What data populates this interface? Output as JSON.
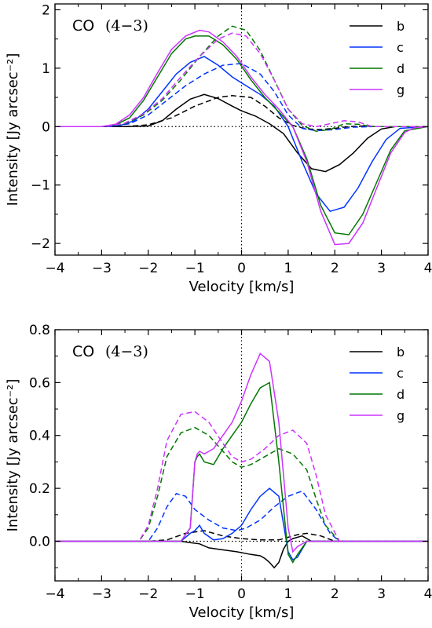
{
  "chart_data": [
    {
      "type": "line",
      "annotation": "CO",
      "annotation_transition": "(4−3)",
      "xlabel": "Velocity [km/s]",
      "ylabel": "Intensity [Jy arcsec⁻²]",
      "xlim": [
        -4,
        4
      ],
      "ylim": [
        -2.2,
        2.1
      ],
      "xticks": [
        "−4",
        "−3",
        "−2",
        "−1",
        "0",
        "1",
        "2",
        "3",
        "4"
      ],
      "yticks": [
        "−2",
        "−1",
        "0",
        "1",
        "2"
      ],
      "ytick_values": [
        -2,
        -1,
        0,
        1,
        2
      ],
      "legend": {
        "placement": "top-right",
        "entries": [
          "b",
          "c",
          "d",
          "g"
        ]
      },
      "grid": false,
      "reference_lines": [
        "x = 0 (dotted)",
        "y = 0 (dotted)"
      ],
      "series": [
        {
          "name": "b",
          "style": "solid",
          "color": "#000000",
          "x": [
            -4,
            -3,
            -2.5,
            -2,
            -1.7,
            -1.4,
            -1.1,
            -0.8,
            -0.5,
            -0.2,
            0,
            0.3,
            0.6,
            0.9,
            1.2,
            1.5,
            1.8,
            2.1,
            2.4,
            2.7,
            3,
            3.3,
            4
          ],
          "y": [
            0,
            0,
            0,
            0.01,
            0.1,
            0.3,
            0.47,
            0.55,
            0.48,
            0.35,
            0.27,
            0.18,
            0.05,
            -0.12,
            -0.45,
            -0.72,
            -0.77,
            -0.65,
            -0.45,
            -0.2,
            -0.04,
            0,
            0
          ]
        },
        {
          "name": "b",
          "style": "dashed",
          "color": "#000000",
          "x": [
            -4,
            -2.5,
            -2,
            -1.5,
            -1,
            -0.5,
            -0.2,
            0.2,
            0.5,
            0.8,
            1.1,
            1.4,
            1.7,
            2,
            2.3,
            2.6,
            3,
            4
          ],
          "y": [
            0,
            0,
            0.03,
            0.15,
            0.35,
            0.5,
            0.53,
            0.5,
            0.35,
            0.15,
            0.02,
            -0.04,
            -0.05,
            -0.03,
            0,
            0.01,
            0,
            0
          ]
        },
        {
          "name": "c",
          "style": "solid",
          "color": "#0033ff",
          "x": [
            -4,
            -3,
            -2.6,
            -2.3,
            -2,
            -1.7,
            -1.4,
            -1.1,
            -0.8,
            -0.5,
            -0.2,
            0.1,
            0.4,
            0.7,
            1,
            1.3,
            1.6,
            1.9,
            2.2,
            2.5,
            2.8,
            3.1,
            3.4,
            4
          ],
          "y": [
            0,
            0,
            0.02,
            0.1,
            0.3,
            0.6,
            0.9,
            1.1,
            1.2,
            1.05,
            0.85,
            0.7,
            0.55,
            0.35,
            0,
            -0.6,
            -1.15,
            -1.45,
            -1.38,
            -1.05,
            -0.6,
            -0.22,
            -0.03,
            0
          ]
        },
        {
          "name": "c",
          "style": "dashed",
          "color": "#0033ff",
          "x": [
            -4,
            -2.8,
            -2.4,
            -2,
            -1.6,
            -1.2,
            -0.8,
            -0.4,
            0,
            0.4,
            0.7,
            1,
            1.3,
            1.6,
            2,
            2.4,
            2.8,
            4
          ],
          "y": [
            0,
            0,
            0.05,
            0.2,
            0.45,
            0.7,
            0.9,
            1.05,
            1.08,
            0.9,
            0.6,
            0.2,
            -0.03,
            -0.07,
            -0.05,
            -0.01,
            0,
            0
          ]
        },
        {
          "name": "d",
          "style": "solid",
          "color": "#007700",
          "x": [
            -4,
            -3,
            -2.7,
            -2.4,
            -2.1,
            -1.8,
            -1.5,
            -1.2,
            -1,
            -0.7,
            -0.4,
            -0.1,
            0.2,
            0.5,
            0.8,
            1.1,
            1.4,
            1.7,
            2,
            2.3,
            2.6,
            2.9,
            3.2,
            3.5,
            4
          ],
          "y": [
            0,
            0,
            0.03,
            0.15,
            0.45,
            0.85,
            1.25,
            1.5,
            1.55,
            1.55,
            1.4,
            1.15,
            0.8,
            0.5,
            0.25,
            0,
            -0.55,
            -1.35,
            -1.82,
            -1.85,
            -1.5,
            -0.95,
            -0.4,
            -0.07,
            0
          ]
        },
        {
          "name": "d",
          "style": "dashed",
          "color": "#007700",
          "x": [
            -4,
            -2.9,
            -2.5,
            -2.1,
            -1.7,
            -1.3,
            -0.9,
            -0.5,
            -0.2,
            0.1,
            0.4,
            0.7,
            1,
            1.3,
            1.6,
            1.9,
            2.2,
            2.5,
            2.8,
            4
          ],
          "y": [
            0,
            0,
            0.05,
            0.2,
            0.45,
            0.8,
            1.2,
            1.55,
            1.72,
            1.65,
            1.3,
            0.8,
            0.3,
            0.02,
            -0.08,
            -0.05,
            0.05,
            0.04,
            0,
            0
          ]
        },
        {
          "name": "g",
          "style": "solid",
          "color": "#cc33ff",
          "x": [
            -4,
            -3,
            -2.7,
            -2.4,
            -2.1,
            -1.8,
            -1.5,
            -1.2,
            -0.9,
            -0.7,
            -0.4,
            -0.1,
            0.2,
            0.5,
            0.8,
            1.1,
            1.4,
            1.7,
            2,
            2.3,
            2.6,
            2.9,
            3.2,
            3.5,
            3.7,
            4
          ],
          "y": [
            0,
            0,
            0.04,
            0.2,
            0.5,
            0.92,
            1.32,
            1.55,
            1.65,
            1.62,
            1.45,
            1.2,
            0.85,
            0.55,
            0.3,
            0,
            -0.6,
            -1.45,
            -2.02,
            -2.0,
            -1.65,
            -1.05,
            -0.45,
            -0.1,
            -0.02,
            0
          ]
        },
        {
          "name": "g",
          "style": "dashed",
          "color": "#cc33ff",
          "x": [
            -4,
            -2.9,
            -2.5,
            -2.1,
            -1.7,
            -1.3,
            -0.9,
            -0.5,
            -0.2,
            0.1,
            0.4,
            0.7,
            1,
            1.3,
            1.6,
            1.9,
            2.2,
            2.5,
            2.8,
            4
          ],
          "y": [
            0,
            0,
            0.06,
            0.22,
            0.48,
            0.85,
            1.2,
            1.5,
            1.6,
            1.55,
            1.25,
            0.8,
            0.3,
            0.05,
            0.0,
            0.05,
            0.1,
            0.08,
            0,
            0
          ]
        }
      ]
    },
    {
      "type": "line",
      "annotation": "CO",
      "annotation_transition": "(4−3)",
      "xlabel": "Velocity [km/s]",
      "ylabel": "Intensity [Jy arcsec⁻²]",
      "xlim": [
        -4,
        4
      ],
      "ylim": [
        -0.15,
        0.8
      ],
      "xticks": [
        "−4",
        "−3",
        "−2",
        "−1",
        "0",
        "1",
        "2",
        "3",
        "4"
      ],
      "yticks": [
        "0.0",
        "0.2",
        "0.4",
        "0.6",
        "0.8"
      ],
      "ytick_values": [
        0,
        0.2,
        0.4,
        0.6,
        0.8
      ],
      "legend": {
        "placement": "top-right",
        "entries": [
          "b",
          "c",
          "d",
          "g"
        ]
      },
      "grid": false,
      "reference_lines": [
        "x = 0 (dotted)",
        "y = 0 (dotted)"
      ],
      "series": [
        {
          "name": "b",
          "style": "solid",
          "color": "#000000",
          "x": [
            -4,
            -1.3,
            -1.1,
            -0.9,
            -0.7,
            -0.5,
            -0.3,
            -0.1,
            0.2,
            0.4,
            0.5,
            0.6,
            0.7,
            0.8,
            0.9,
            1,
            1.1,
            1.3,
            1.5,
            4
          ],
          "y": [
            0,
            0,
            -0.005,
            -0.01,
            -0.025,
            -0.03,
            -0.035,
            -0.04,
            -0.05,
            -0.055,
            -0.065,
            -0.08,
            -0.1,
            -0.08,
            -0.03,
            0.0,
            0.01,
            0.02,
            0,
            0
          ]
        },
        {
          "name": "b",
          "style": "dashed",
          "color": "#000000",
          "x": [
            -4,
            -2,
            -1.6,
            -1.2,
            -0.8,
            -0.4,
            0,
            0.4,
            0.8,
            1,
            1.2,
            1.4,
            1.7,
            2,
            4
          ],
          "y": [
            0,
            0,
            0.005,
            0.03,
            0.04,
            0.02,
            0.01,
            0.005,
            0.005,
            0.015,
            0.025,
            0.03,
            0.02,
            0,
            0
          ]
        },
        {
          "name": "c",
          "style": "solid",
          "color": "#0033ff",
          "x": [
            -4,
            -1.3,
            -1.1,
            -1.0,
            -0.9,
            -0.8,
            -0.6,
            -0.4,
            -0.2,
            0,
            0.2,
            0.4,
            0.6,
            0.8,
            1.0,
            1.1,
            1.2,
            1.4,
            4
          ],
          "y": [
            0,
            0,
            0.03,
            0.04,
            0.06,
            0.03,
            0.005,
            0.01,
            0.03,
            0.06,
            0.12,
            0.17,
            0.2,
            0.17,
            -0.04,
            -0.07,
            -0.06,
            0,
            0
          ]
        },
        {
          "name": "c",
          "style": "dashed",
          "color": "#0033ff",
          "x": [
            -4,
            -2,
            -1.8,
            -1.6,
            -1.4,
            -1.2,
            -1.0,
            -0.7,
            -0.4,
            -0.1,
            0.1,
            0.4,
            0.7,
            1.0,
            1.3,
            1.6,
            1.9,
            2.1,
            4
          ],
          "y": [
            0,
            0,
            0.05,
            0.13,
            0.18,
            0.17,
            0.12,
            0.08,
            0.05,
            0.04,
            0.05,
            0.08,
            0.13,
            0.17,
            0.19,
            0.12,
            0.03,
            0,
            0
          ]
        },
        {
          "name": "d",
          "style": "solid",
          "color": "#007700",
          "x": [
            -4,
            -1.3,
            -1.1,
            -1.0,
            -0.95,
            -0.9,
            -0.8,
            -0.6,
            -0.4,
            -0.2,
            0,
            0.2,
            0.4,
            0.6,
            0.8,
            1.0,
            1.1,
            1.2,
            1.4,
            4
          ],
          "y": [
            0,
            0,
            0.05,
            0.3,
            0.32,
            0.33,
            0.3,
            0.29,
            0.35,
            0.4,
            0.45,
            0.52,
            0.58,
            0.6,
            0.3,
            -0.05,
            -0.08,
            -0.05,
            0,
            0
          ]
        },
        {
          "name": "d",
          "style": "dashed",
          "color": "#007700",
          "x": [
            -4,
            -2.2,
            -2,
            -1.8,
            -1.6,
            -1.3,
            -1.0,
            -0.7,
            -0.4,
            -0.2,
            0,
            0.2,
            0.5,
            0.8,
            1.1,
            1.4,
            1.6,
            1.8,
            2.1,
            4
          ],
          "y": [
            0,
            0,
            0.05,
            0.17,
            0.32,
            0.41,
            0.43,
            0.4,
            0.34,
            0.3,
            0.28,
            0.29,
            0.32,
            0.35,
            0.33,
            0.27,
            0.16,
            0.06,
            0,
            0
          ]
        },
        {
          "name": "g",
          "style": "solid",
          "color": "#cc33ff",
          "x": [
            -4,
            -1.3,
            -1.1,
            -1.0,
            -0.95,
            -0.9,
            -0.8,
            -0.6,
            -0.4,
            -0.2,
            0,
            0.2,
            0.4,
            0.6,
            0.8,
            1.0,
            1.1,
            1.2,
            1.4,
            4
          ],
          "y": [
            0,
            0,
            0.05,
            0.3,
            0.33,
            0.34,
            0.33,
            0.35,
            0.4,
            0.45,
            0.53,
            0.63,
            0.71,
            0.68,
            0.45,
            0.05,
            -0.04,
            -0.02,
            0,
            0
          ]
        },
        {
          "name": "g",
          "style": "dashed",
          "color": "#cc33ff",
          "x": [
            -4,
            -2.2,
            -2,
            -1.8,
            -1.6,
            -1.3,
            -1.0,
            -0.7,
            -0.4,
            -0.2,
            0,
            0.2,
            0.5,
            0.8,
            1.1,
            1.4,
            1.6,
            1.8,
            2.1,
            4
          ],
          "y": [
            0,
            0,
            0.06,
            0.2,
            0.38,
            0.48,
            0.49,
            0.45,
            0.37,
            0.32,
            0.3,
            0.31,
            0.35,
            0.4,
            0.42,
            0.37,
            0.25,
            0.1,
            0,
            0
          ]
        }
      ]
    }
  ]
}
